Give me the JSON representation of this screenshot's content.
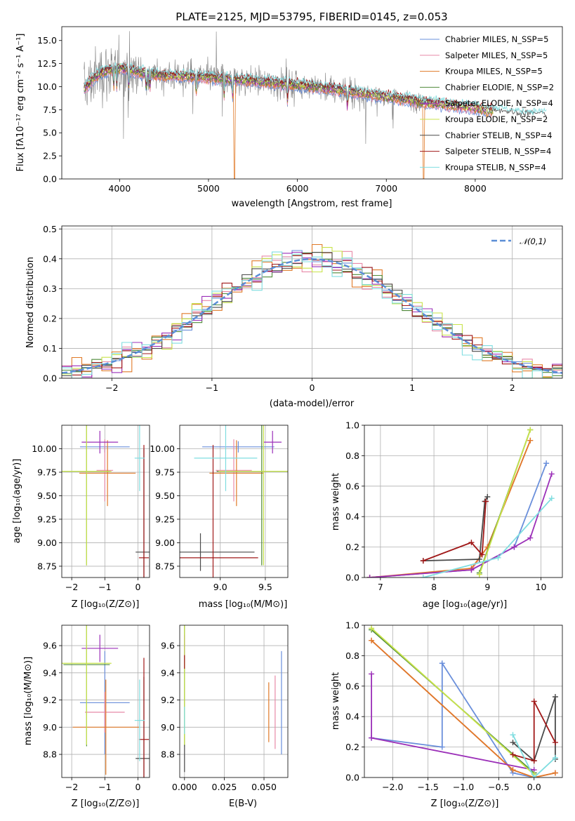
{
  "colors": {
    "chabrier_miles": "#6a8fdb",
    "salpeter_miles": "#e88aa8",
    "kroupa_miles": "#e07a28",
    "chabrier_elodie": "#4f8a3a",
    "salpeter_elodie": "#9b2fb8",
    "kroupa_elodie": "#c8e34a",
    "chabrier_stelib": "#4a4a4a",
    "salpeter_stelib": "#a01818",
    "kroupa_stelib": "#7fdde0",
    "data_line": "#808080",
    "normal_curve": "#5b8ed6",
    "grid": "#b0b0b0"
  },
  "chart_data": [
    {
      "type": "line",
      "title": "PLATE=2125, MJD=53795, FIBERID=0145, z=0.053",
      "xlabel": "wavelength [Angstrom, rest frame]",
      "ylabel": "Flux [fλ10⁻¹⁷ erg cm⁻² s⁻¹ A⁻¹]",
      "xlim": [
        3350,
        8980
      ],
      "ylim": [
        0,
        16.5
      ],
      "xticks": [
        "4000",
        "5000",
        "6000",
        "7000",
        "8000"
      ],
      "yticks": [
        "0.0",
        "2.5",
        "5.0",
        "7.5",
        "10.0",
        "12.5",
        "15.0"
      ],
      "legend_position": "top-right",
      "series": [
        {
          "name": "Chabrier MILES, N_SSP=5",
          "key": "chabrier_miles"
        },
        {
          "name": "Salpeter MILES, N_SSP=5",
          "key": "salpeter_miles"
        },
        {
          "name": "Kroupa MILES, N_SSP=5",
          "key": "kroupa_miles"
        },
        {
          "name": "Chabrier ELODIE, N_SSP=2",
          "key": "chabrier_elodie"
        },
        {
          "name": "Salpeter ELODIE, N_SSP=4",
          "key": "salpeter_elodie"
        },
        {
          "name": "Kroupa ELODIE, N_SSP=2",
          "key": "kroupa_elodie"
        },
        {
          "name": "Chabrier STELIB, N_SSP=4",
          "key": "chabrier_stelib"
        },
        {
          "name": "Salpeter STELIB, N_SSP=4",
          "key": "salpeter_stelib"
        },
        {
          "name": "Kroupa STELIB, N_SSP=4",
          "key": "kroupa_stelib"
        }
      ],
      "continuum": {
        "x": [
          3600,
          3700,
          3800,
          4000,
          4200,
          4500,
          5000,
          5500,
          6000,
          6500,
          7000,
          7500,
          8000,
          8500
        ],
        "y": [
          9.8,
          10.8,
          11.6,
          12.0,
          11.6,
          11.2,
          11.0,
          10.6,
          10.2,
          9.6,
          8.9,
          8.2,
          7.7,
          6.9
        ]
      }
    },
    {
      "type": "histogram",
      "xlabel": "(data-model)/error",
      "ylabel": "Normed distribution",
      "xlim": [
        -2.5,
        2.5
      ],
      "ylim": [
        0,
        0.51
      ],
      "xticks": [
        "−2",
        "−1",
        "0",
        "1",
        "2"
      ],
      "yticks": [
        "0.0",
        "0.1",
        "0.2",
        "0.3",
        "0.4",
        "0.5"
      ],
      "legend": "𝒩(0,1)",
      "legend_position": "top-right",
      "bins": [
        -2.5,
        -2.4,
        -2.3,
        -2.2,
        -2.1,
        -2.0,
        -1.9,
        -1.8,
        -1.7,
        -1.6,
        -1.5,
        -1.4,
        -1.3,
        -1.2,
        -1.1,
        -1.0,
        -0.9,
        -0.8,
        -0.7,
        -0.6,
        -0.5,
        -0.4,
        -0.3,
        -0.2,
        -0.1,
        0.0,
        0.1,
        0.2,
        0.3,
        0.4,
        0.5,
        0.6,
        0.7,
        0.8,
        0.9,
        1.0,
        1.1,
        1.2,
        1.3,
        1.4,
        1.5,
        1.6,
        1.7,
        1.8,
        1.9,
        2.0,
        2.1,
        2.2,
        2.3,
        2.4,
        2.5
      ]
    },
    {
      "type": "scatter",
      "xlabel": "Z [log₁₀(Z/Z⊙)]",
      "ylabel": "age  [log₁₀(age/yr)]",
      "xlim": [
        -2.3,
        0.35
      ],
      "ylim": [
        8.63,
        10.25
      ],
      "xticks": [
        "−2",
        "−1",
        "0"
      ],
      "yticks": [
        "8.75",
        "9.00",
        "9.25",
        "9.50",
        "9.75",
        "10.00"
      ],
      "points": [
        {
          "key": "chabrier_miles",
          "x": -1.0,
          "y": 10.02,
          "xerr": 0.75,
          "yerr": 0.06
        },
        {
          "key": "salpeter_miles",
          "x": -1.0,
          "y": 9.77,
          "xerr": 0.25,
          "yerr": 0.33
        },
        {
          "key": "kroupa_miles",
          "x": -0.92,
          "y": 9.74,
          "xerr": 0.85,
          "yerr": 0.35
        },
        {
          "key": "chabrier_elodie",
          "x": -1.55,
          "y": 9.76,
          "xerr": 0.7,
          "yerr": 1.0
        },
        {
          "key": "salpeter_elodie",
          "x": -1.15,
          "y": 10.07,
          "xerr": 0.55,
          "yerr": 0.12
        },
        {
          "key": "kroupa_elodie",
          "x": -1.55,
          "y": 9.76,
          "xerr": 0.75,
          "yerr": 1.0
        },
        {
          "key": "chabrier_stelib",
          "x": 0.18,
          "y": 8.9,
          "xerr": 0.25,
          "yerr": 1.1
        },
        {
          "key": "salpeter_stelib",
          "x": 0.18,
          "y": 8.84,
          "xerr": 0.15,
          "yerr": 1.2
        },
        {
          "key": "kroupa_stelib",
          "x": 0.05,
          "y": 9.9,
          "xerr": 0.15,
          "yerr": 0.35
        }
      ]
    },
    {
      "type": "scatter",
      "xlabel": "mass [log₁₀(M/M⊙)]",
      "ylabel": "",
      "xlim": [
        8.55,
        9.75
      ],
      "ylim": [
        8.63,
        10.25
      ],
      "xticks": [
        "9.0",
        "9.5"
      ],
      "yticks": [
        "8.75",
        "9.00",
        "9.25",
        "9.50",
        "9.75",
        "10.00"
      ],
      "points": [
        {
          "key": "chabrier_miles",
          "x": 9.2,
          "y": 10.02,
          "xerr": 0.4,
          "yerr": 0.06
        },
        {
          "key": "salpeter_miles",
          "x": 9.15,
          "y": 9.77,
          "xerr": 0.2,
          "yerr": 0.33
        },
        {
          "key": "kroupa_miles",
          "x": 9.18,
          "y": 9.74,
          "xerr": 0.3,
          "yerr": 0.35
        },
        {
          "key": "chabrier_elodie",
          "x": 9.46,
          "y": 9.76,
          "xerr": 0.5,
          "yerr": 1.0
        },
        {
          "key": "salpeter_elodie",
          "x": 9.58,
          "y": 10.07,
          "xerr": 0.1,
          "yerr": 0.12
        },
        {
          "key": "kroupa_elodie",
          "x": 9.48,
          "y": 9.76,
          "xerr": 0.5,
          "yerr": 1.0
        },
        {
          "key": "chabrier_stelib",
          "x": 8.78,
          "y": 8.9,
          "xerr": 0.6,
          "yerr": 0.2
        },
        {
          "key": "salpeter_stelib",
          "x": 8.92,
          "y": 8.84,
          "xerr": 0.5,
          "yerr": 1.2
        },
        {
          "key": "kroupa_stelib",
          "x": 9.06,
          "y": 9.9,
          "xerr": 0.35,
          "yerr": 0.35
        }
      ]
    },
    {
      "type": "line",
      "xlabel": "age  [log₁₀(age/yr)]",
      "ylabel": "mass weight",
      "xlim": [
        6.7,
        10.4
      ],
      "ylim": [
        0,
        1.0
      ],
      "xticks": [
        "7",
        "8",
        "9",
        "10"
      ],
      "yticks": [
        "0.0",
        "0.2",
        "0.4",
        "0.6",
        "0.8",
        "1.0"
      ],
      "series": [
        {
          "key": "chabrier_miles",
          "x": [
            6.8,
            8.7,
            9.5,
            10.1
          ],
          "y": [
            0.0,
            0.05,
            0.2,
            0.75
          ]
        },
        {
          "key": "salpeter_miles",
          "x": [
            6.8,
            8.7,
            9.0,
            9.8
          ],
          "y": [
            0.0,
            0.05,
            0.2,
            0.9
          ]
        },
        {
          "key": "kroupa_miles",
          "x": [
            6.8,
            8.7,
            9.0,
            9.8
          ],
          "y": [
            0.0,
            0.06,
            0.2,
            0.9
          ]
        },
        {
          "key": "chabrier_elodie",
          "x": [
            8.85,
            9.8
          ],
          "y": [
            0.03,
            0.97
          ]
        },
        {
          "key": "salpeter_elodie",
          "x": [
            6.8,
            8.7,
            9.5,
            9.8,
            10.2
          ],
          "y": [
            0.0,
            0.05,
            0.2,
            0.26,
            0.68
          ]
        },
        {
          "key": "kroupa_elodie",
          "x": [
            8.85,
            9.8
          ],
          "y": [
            0.02,
            0.97
          ]
        },
        {
          "key": "chabrier_stelib",
          "x": [
            7.8,
            8.85,
            8.95,
            9.0
          ],
          "y": [
            0.11,
            0.12,
            0.5,
            0.53
          ]
        },
        {
          "key": "salpeter_stelib",
          "x": [
            7.8,
            8.7,
            8.9,
            8.97
          ],
          "y": [
            0.11,
            0.23,
            0.15,
            0.5
          ]
        },
        {
          "key": "kroupa_stelib",
          "x": [
            7.8,
            9.2,
            10.2
          ],
          "y": [
            0.0,
            0.13,
            0.52
          ]
        }
      ]
    },
    {
      "type": "scatter",
      "xlabel": "Z [log₁₀(Z/Z⊙)]",
      "ylabel": "mass [log₁₀(M/M⊙)]",
      "xlim": [
        -2.3,
        0.35
      ],
      "ylim": [
        8.63,
        9.75
      ],
      "xticks": [
        "−2",
        "−1",
        "0"
      ],
      "yticks": [
        "8.8",
        "9.0",
        "9.2",
        "9.4",
        "9.6"
      ],
      "points": [
        {
          "key": "chabrier_miles",
          "x": -1.0,
          "y": 9.18,
          "xerr": 0.75,
          "yerr": 0.38
        },
        {
          "key": "salpeter_miles",
          "x": -1.0,
          "y": 9.11,
          "xerr": 0.6,
          "yerr": 0.15
        },
        {
          "key": "kroupa_miles",
          "x": -0.97,
          "y": 9.0,
          "xerr": 1.0,
          "yerr": 0.35
        },
        {
          "key": "chabrier_elodie",
          "x": -1.55,
          "y": 9.46,
          "xerr": 0.7,
          "yerr": 0.6
        },
        {
          "key": "salpeter_elodie",
          "x": -1.15,
          "y": 9.58,
          "xerr": 0.55,
          "yerr": 0.1
        },
        {
          "key": "kroupa_elodie",
          "x": -1.55,
          "y": 9.47,
          "xerr": 0.75,
          "yerr": 0.6
        },
        {
          "key": "chabrier_stelib",
          "x": 0.18,
          "y": 8.77,
          "xerr": 0.25,
          "yerr": 0.6
        },
        {
          "key": "salpeter_stelib",
          "x": 0.18,
          "y": 8.91,
          "xerr": 0.15,
          "yerr": 0.6
        },
        {
          "key": "kroupa_stelib",
          "x": 0.05,
          "y": 9.05,
          "xerr": 0.15,
          "yerr": 0.3
        }
      ]
    },
    {
      "type": "scatter",
      "xlabel": "E(B-V)",
      "ylabel": "",
      "xlim": [
        -0.003,
        0.065
      ],
      "ylim": [
        8.63,
        9.75
      ],
      "xticks": [
        "0.000",
        "0.025",
        "0.050"
      ],
      "yticks": [
        "8.8",
        "9.0",
        "9.2",
        "9.4",
        "9.6"
      ],
      "points": [
        {
          "key": "chabrier_miles",
          "x": 0.061,
          "y": 9.18,
          "yerr": 0.38
        },
        {
          "key": "salpeter_miles",
          "x": 0.057,
          "y": 9.11,
          "yerr": 0.27
        },
        {
          "key": "kroupa_miles",
          "x": 0.053,
          "y": 9.11,
          "yerr": 0.22
        },
        {
          "key": "chabrier_elodie",
          "x": 0.0,
          "y": 9.46,
          "yerr": 0.6
        },
        {
          "key": "salpeter_elodie",
          "x": 0.0,
          "y": 9.58,
          "yerr": 0.1
        },
        {
          "key": "kroupa_elodie",
          "x": 0.0,
          "y": 9.47,
          "yerr": 0.6
        },
        {
          "key": "chabrier_stelib",
          "x": 0.0,
          "y": 8.77,
          "yerr": 0.1
        },
        {
          "key": "salpeter_stelib",
          "x": 0.0,
          "y": 9.48,
          "yerr": 0.05
        },
        {
          "key": "kroupa_stelib",
          "x": 0.0,
          "y": 9.05,
          "yerr": 0.1
        }
      ]
    },
    {
      "type": "line",
      "xlabel": "Z [log₁₀(Z/Z⊙)]",
      "ylabel": "mass weight",
      "xlim": [
        -2.4,
        0.4
      ],
      "ylim": [
        0,
        1.0
      ],
      "xticks": [
        "−2.0",
        "−1.5",
        "−1.0",
        "−0.5",
        "0.0"
      ],
      "yticks": [
        "0.0",
        "0.2",
        "0.4",
        "0.6",
        "0.8",
        "1.0"
      ],
      "series": [
        {
          "key": "chabrier_miles",
          "x": [
            -2.3,
            -1.3,
            -1.3,
            -0.3,
            0.0
          ],
          "y": [
            0.26,
            0.2,
            0.75,
            0.03,
            0.0
          ]
        },
        {
          "key": "salpeter_miles",
          "x": [
            -2.3,
            -0.3,
            0.0,
            0.3
          ],
          "y": [
            0.9,
            0.05,
            0.0,
            0.03
          ]
        },
        {
          "key": "kroupa_miles",
          "x": [
            -2.3,
            -0.3,
            0.0,
            0.3
          ],
          "y": [
            0.9,
            0.05,
            0.0,
            0.03
          ]
        },
        {
          "key": "chabrier_elodie",
          "x": [
            -2.3,
            0.0
          ],
          "y": [
            0.97,
            0.03
          ]
        },
        {
          "key": "salpeter_elodie",
          "x": [
            -2.3,
            -2.3,
            0.0
          ],
          "y": [
            0.68,
            0.26,
            0.05
          ]
        },
        {
          "key": "kroupa_elodie",
          "x": [
            -2.3,
            0.0
          ],
          "y": [
            0.98,
            0.02
          ]
        },
        {
          "key": "chabrier_stelib",
          "x": [
            -0.3,
            0.0,
            0.3,
            0.3
          ],
          "y": [
            0.23,
            0.11,
            0.53,
            0.12
          ]
        },
        {
          "key": "salpeter_stelib",
          "x": [
            -0.3,
            0.0,
            0.0,
            0.3
          ],
          "y": [
            0.15,
            0.11,
            0.5,
            0.23
          ]
        },
        {
          "key": "kroupa_stelib",
          "x": [
            -0.3,
            0.0,
            0.3
          ],
          "y": [
            0.28,
            0.0,
            0.13
          ]
        }
      ]
    }
  ]
}
